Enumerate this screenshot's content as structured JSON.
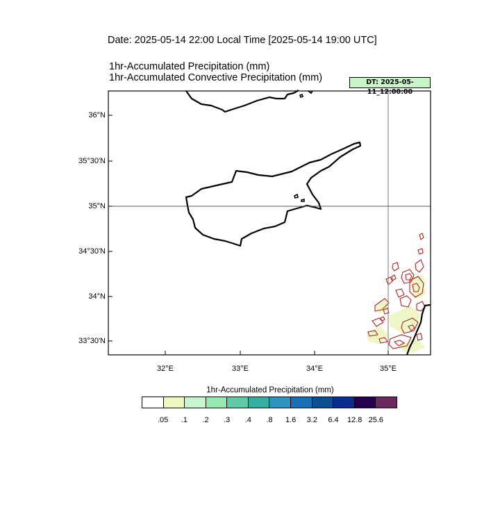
{
  "header": {
    "date_line": "Date: 2025-05-14  22:00 Local Time [2025-05-14  19:00 UTC]",
    "title_line_1": "1hr-Accumulated Precipitation   (mm)",
    "title_line_2": "1hr-Accumulated Convective Precipitation   (mm)",
    "dt_badge": "DT: 2025-05-11_12:00:00",
    "dt_badge_color": "#c8f5c8"
  },
  "map": {
    "region": "Cyprus and eastern Mediterranean",
    "projection": "lat-lon",
    "lon_range": [
      31.2,
      35.55
    ],
    "lat_range": [
      33.35,
      36.3
    ],
    "x_ticks": [
      "32°E",
      "33°E",
      "34°E",
      "35°E"
    ],
    "y_ticks": [
      "36°N",
      "35°30'N",
      "35°N",
      "34°30'N",
      "34°N",
      "33°30'N"
    ],
    "reference_lines": {
      "lon": "35°E",
      "lat": "35°N"
    },
    "precip_contour_color": "#b22222"
  },
  "colorbar": {
    "title": "1hr-Accumulated Precipitation  (mm)",
    "colors": [
      "#ffffff",
      "#edf8c0",
      "#c7f5cd",
      "#98e8b2",
      "#5fc9a8",
      "#34aea0",
      "#2e93bd",
      "#176fb6",
      "#0c4f8f",
      "#0c2c8f",
      "#26004d",
      "#6b2a5f"
    ],
    "labels": [
      ".05",
      ".1",
      ".2",
      ".3",
      ".4",
      ".8",
      "1.6",
      "3.2",
      "6.4",
      "12.8",
      "25.6"
    ]
  }
}
